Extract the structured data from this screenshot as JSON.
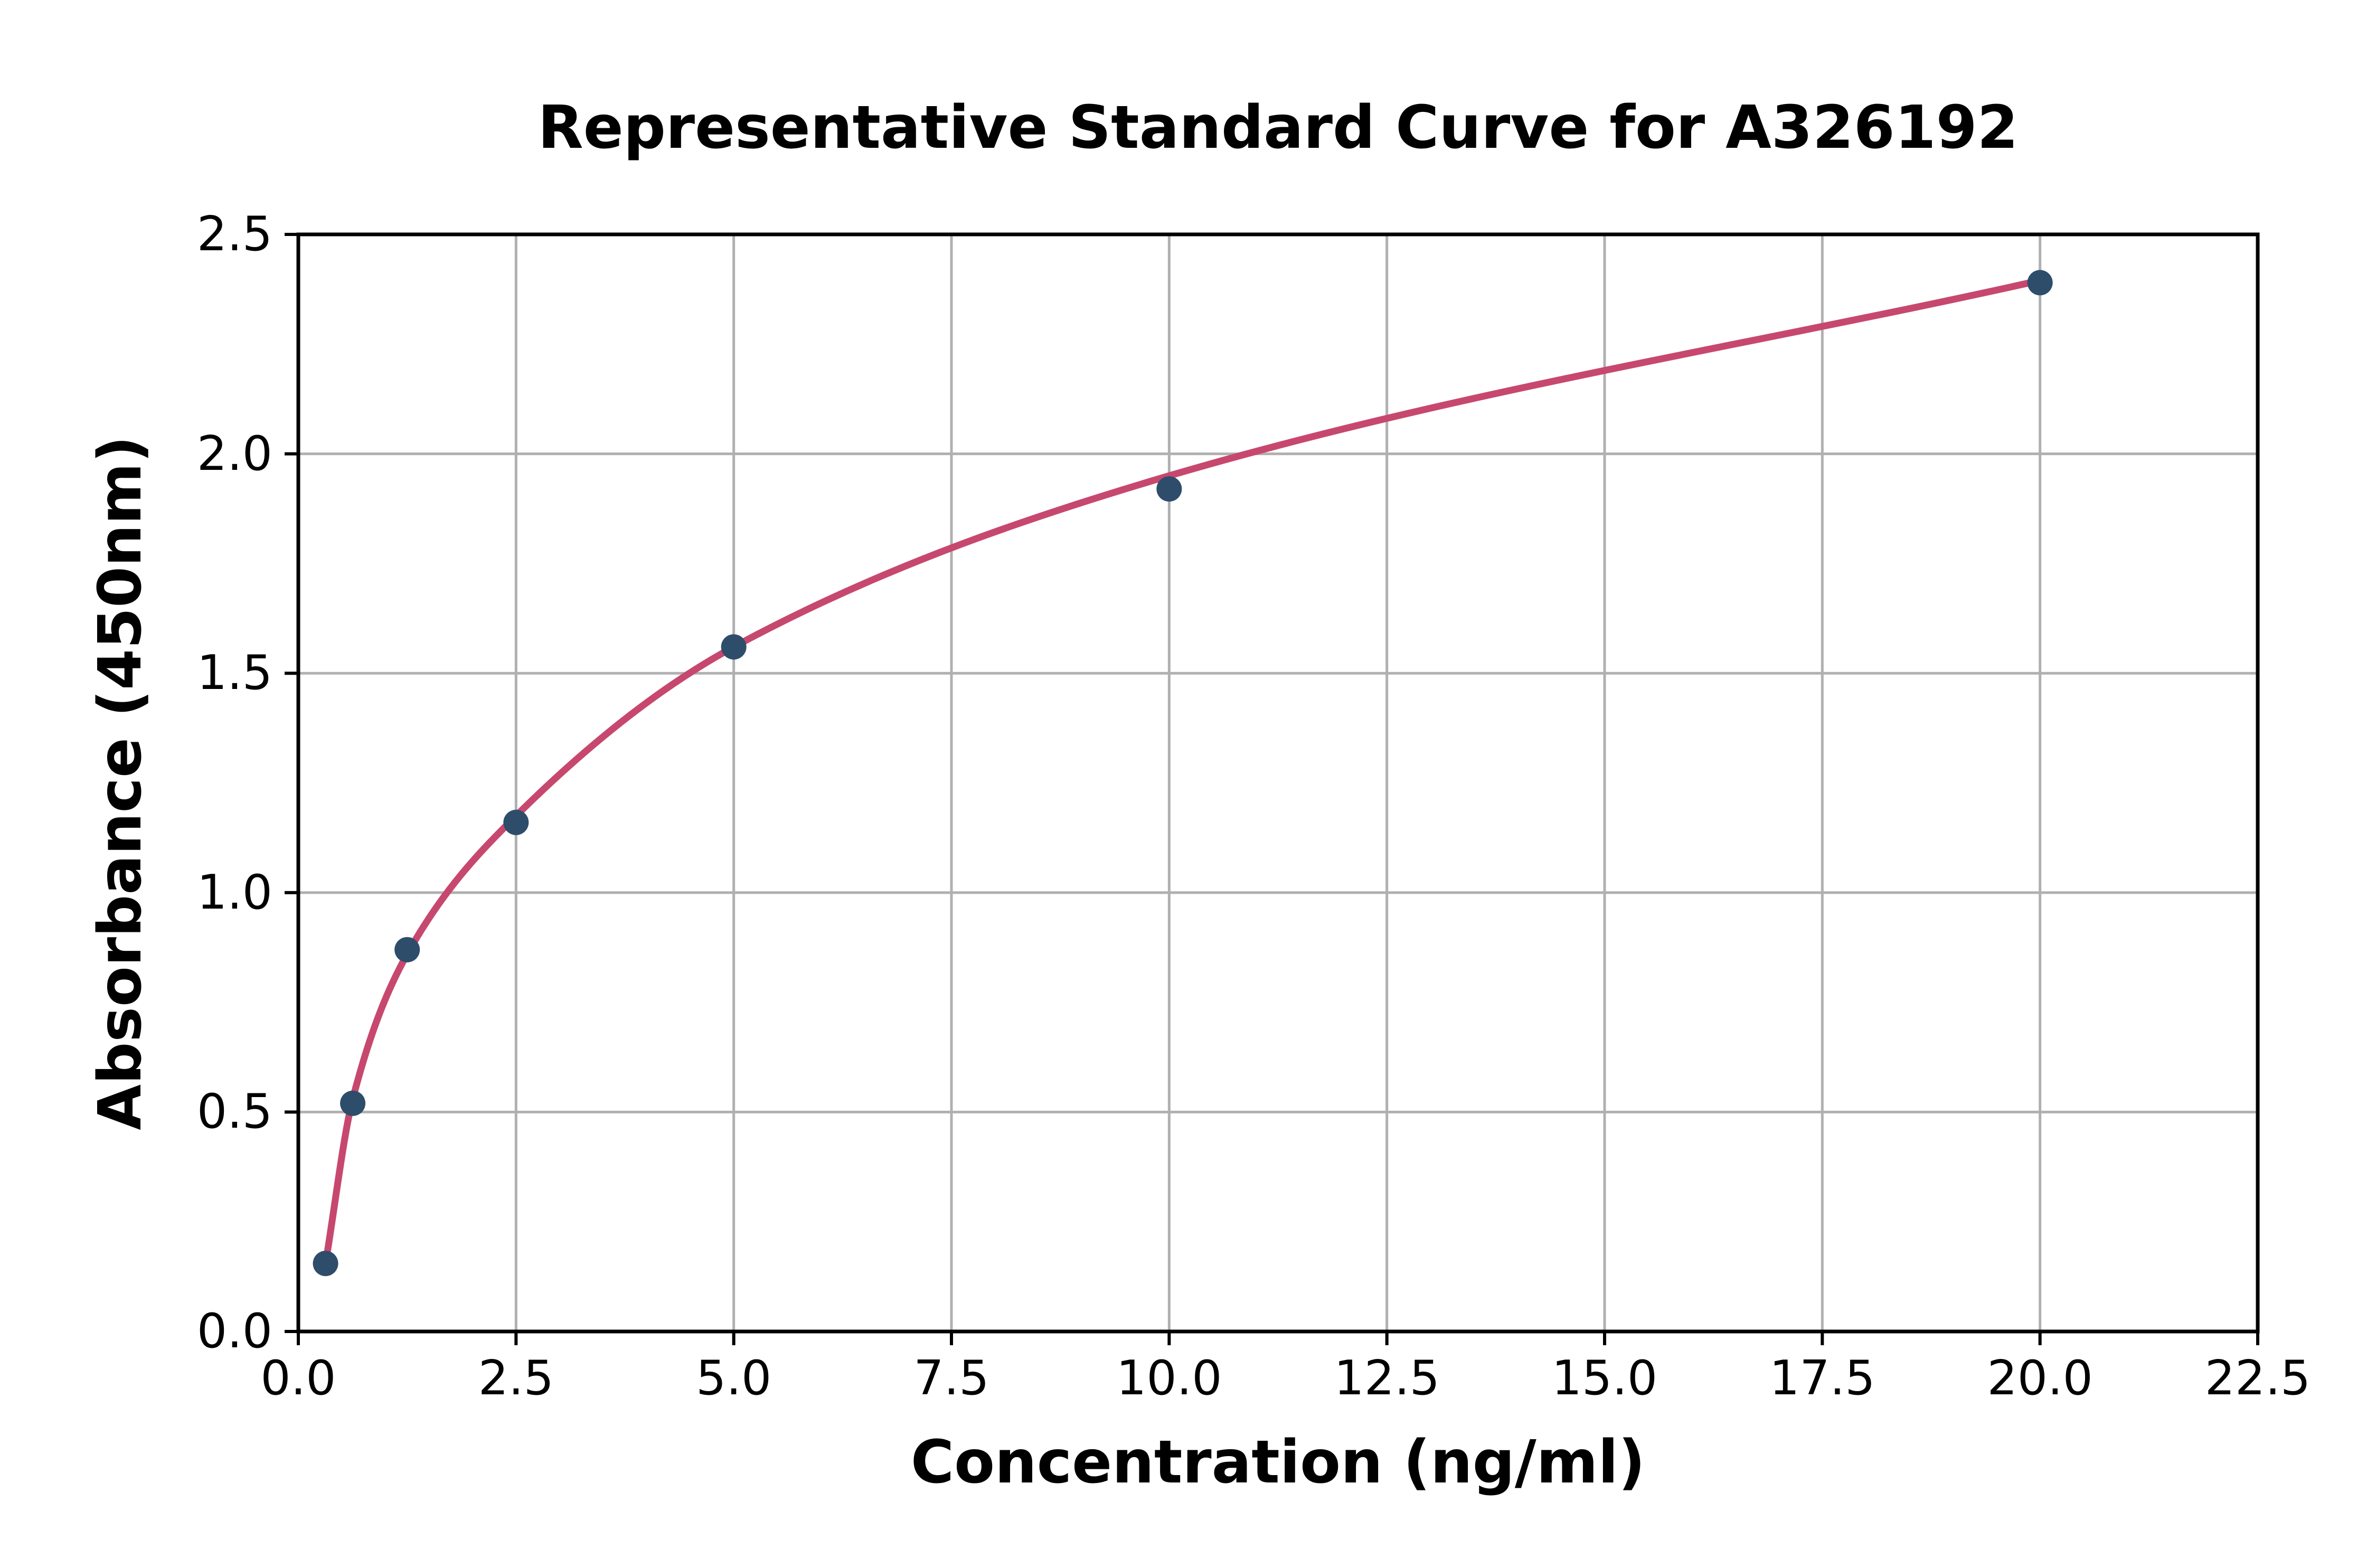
{
  "figure": {
    "background": "#ffffff"
  },
  "chart_data": {
    "type": "scatter",
    "title": "Representative Standard Curve for A326192",
    "xlabel": "Concentration (ng/ml)",
    "ylabel": "Absorbance (450nm)",
    "xlim": [
      0,
      22.5
    ],
    "ylim": [
      0,
      2.5
    ],
    "grid": true,
    "legend": false,
    "xtick_values": [
      0,
      2.5,
      5,
      7.5,
      10,
      12.5,
      15,
      17.5,
      20,
      22.5
    ],
    "xtick_labels": [
      "0.0",
      "2.5",
      "5.0",
      "7.5",
      "10.0",
      "12.5",
      "15.0",
      "17.5",
      "20.0",
      "22.5"
    ],
    "ytick_values": [
      0,
      0.5,
      1,
      1.5,
      2,
      2.5
    ],
    "ytick_labels": [
      "0.0",
      "0.5",
      "1.0",
      "1.5",
      "2.0",
      "2.5"
    ],
    "series": [
      {
        "name": "standard-points",
        "kind": "scatter",
        "marker": "circle",
        "color": "#2e4d6b",
        "x": [
          0.3125,
          0.625,
          1.25,
          2.5,
          5,
          10,
          20
        ],
        "y": [
          0.155,
          0.52,
          0.87,
          1.16,
          1.56,
          1.92,
          2.39
        ]
      },
      {
        "name": "fit-curve",
        "kind": "line",
        "color": "#c7486e",
        "x": [
          0.3125,
          0.625,
          1.25,
          2.5,
          5,
          10,
          20
        ],
        "y": [
          0.155,
          0.53,
          0.86,
          1.175,
          1.56,
          1.95,
          2.395
        ]
      }
    ],
    "colors": {
      "grid": "#b0b0b0",
      "axis": "#000000",
      "text": "#000000",
      "background": "#ffffff",
      "points": "#2e4d6b",
      "curve": "#c7486e"
    }
  }
}
